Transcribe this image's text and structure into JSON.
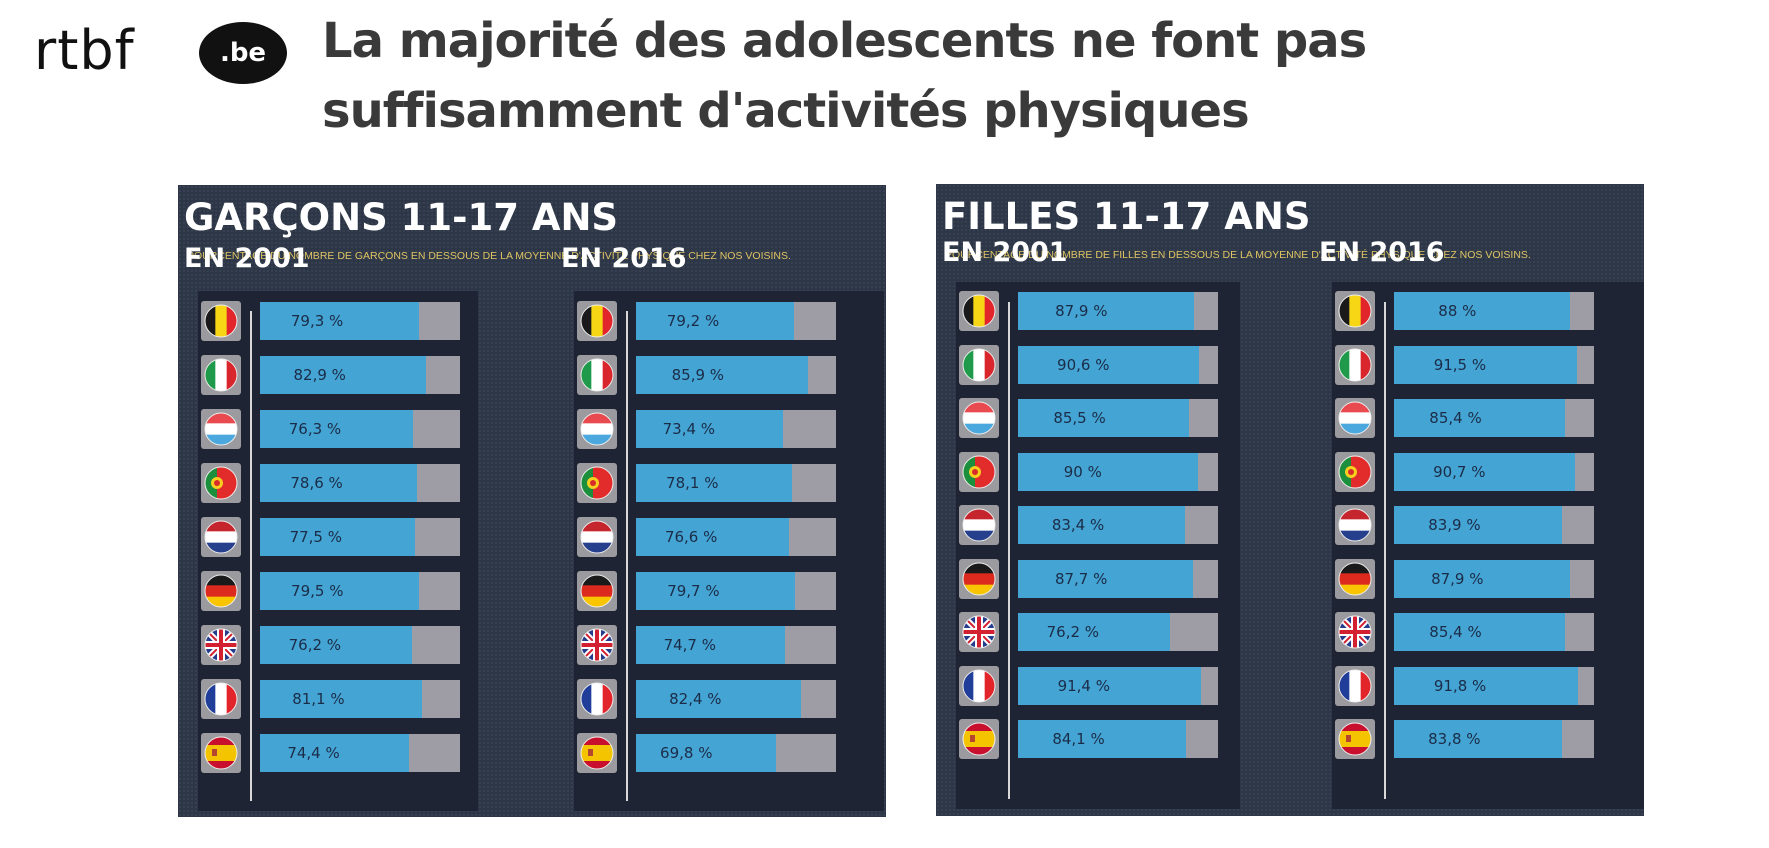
{
  "header": {
    "logo_word": "rtbf",
    "logo_badge": ".be",
    "headline_line1": "La majorité des adolescents ne font pas",
    "headline_line2": "suffisamment d'activités physiques"
  },
  "colors": {
    "panel_bg": "#2c3647",
    "column_bg": "#1f2434",
    "bar_fill": "#44a4d3",
    "bar_remainder": "#9e9ca4",
    "subtitle": "#e0c463"
  },
  "countries": [
    "belgium",
    "italy",
    "luxembourg",
    "portugal",
    "netherlands",
    "germany",
    "united-kingdom",
    "france",
    "spain"
  ],
  "chart_data": [
    {
      "type": "bar",
      "orientation": "horizontal",
      "title": "GARÇONS 11-17 ANS",
      "subtitle": "POURCENTAGE DU NOMBRE DE GARÇONS EN DESSOUS DE LA MOYENNE D'ACTIVITÉ PHYSIQUE CHEZ NOS VOISINS.",
      "xlim": [
        0,
        100
      ],
      "unit": "%",
      "series": [
        {
          "name": "EN 2001",
          "values": [
            79.3,
            82.9,
            76.3,
            78.6,
            77.5,
            79.5,
            76.2,
            81.1,
            74.4
          ],
          "labels": [
            "79,3 %",
            "82,9 %",
            "76,3 %",
            "78,6 %",
            "77,5 %",
            "79,5 %",
            "76,2 %",
            "81,1 %",
            "74,4 %"
          ]
        },
        {
          "name": "EN 2016",
          "values": [
            79.2,
            85.9,
            73.4,
            78.1,
            76.6,
            79.7,
            74.7,
            82.4,
            69.8
          ],
          "labels": [
            "79,2 %",
            "85,9 %",
            "73,4 %",
            "78,1 %",
            "76,6 %",
            "79,7 %",
            "74,7 %",
            "82,4 %",
            "69,8 %"
          ]
        }
      ]
    },
    {
      "type": "bar",
      "orientation": "horizontal",
      "title": "FILLES 11-17 ANS",
      "subtitle": "POURCENTAGE DU NOMBRE DE FILLES EN DESSOUS DE LA MOYENNE D'ACTIVITÉ PHYSIQUE CHEZ NOS VOISINS.",
      "xlim": [
        0,
        100
      ],
      "unit": "%",
      "series": [
        {
          "name": "EN 2001",
          "values": [
            87.9,
            90.6,
            85.5,
            90,
            83.4,
            87.7,
            76.2,
            91.4,
            84.1
          ],
          "labels": [
            "87,9 %",
            "90,6 %",
            "85,5 %",
            "90 %",
            "83,4 %",
            "87,7 %",
            "76,2 %",
            "91,4 %",
            "84,1 %"
          ]
        },
        {
          "name": "EN 2016",
          "values": [
            88,
            91.5,
            85.4,
            90.7,
            83.9,
            87.9,
            85.4,
            91.8,
            83.8
          ],
          "labels": [
            "88 %",
            "91,5 %",
            "85,4 %",
            "90,7 %",
            "83,9 %",
            "87,9 %",
            "85,4 %",
            "91,8 %",
            "83,8 %"
          ]
        }
      ]
    }
  ]
}
